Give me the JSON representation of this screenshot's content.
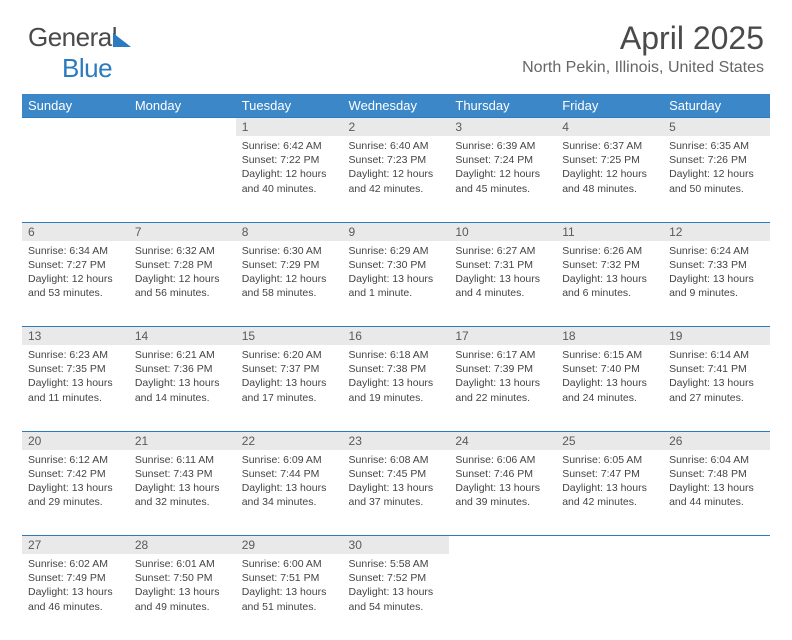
{
  "logo": {
    "word1": "General",
    "word2": "Blue"
  },
  "title": "April 2025",
  "location": "North Pekin, Illinois, United States",
  "colors": {
    "header_bg": "#3b87c8",
    "header_text": "#ffffff",
    "daynum_bg": "#e9e9e9",
    "rule": "#2a7bbf",
    "text": "#444444",
    "logo_blue": "#2a7bbf"
  },
  "day_headers": [
    "Sunday",
    "Monday",
    "Tuesday",
    "Wednesday",
    "Thursday",
    "Friday",
    "Saturday"
  ],
  "weeks": [
    [
      null,
      null,
      {
        "n": "1",
        "sr": "Sunrise: 6:42 AM",
        "ss": "Sunset: 7:22 PM",
        "d1": "Daylight: 12 hours",
        "d2": "and 40 minutes."
      },
      {
        "n": "2",
        "sr": "Sunrise: 6:40 AM",
        "ss": "Sunset: 7:23 PM",
        "d1": "Daylight: 12 hours",
        "d2": "and 42 minutes."
      },
      {
        "n": "3",
        "sr": "Sunrise: 6:39 AM",
        "ss": "Sunset: 7:24 PM",
        "d1": "Daylight: 12 hours",
        "d2": "and 45 minutes."
      },
      {
        "n": "4",
        "sr": "Sunrise: 6:37 AM",
        "ss": "Sunset: 7:25 PM",
        "d1": "Daylight: 12 hours",
        "d2": "and 48 minutes."
      },
      {
        "n": "5",
        "sr": "Sunrise: 6:35 AM",
        "ss": "Sunset: 7:26 PM",
        "d1": "Daylight: 12 hours",
        "d2": "and 50 minutes."
      }
    ],
    [
      {
        "n": "6",
        "sr": "Sunrise: 6:34 AM",
        "ss": "Sunset: 7:27 PM",
        "d1": "Daylight: 12 hours",
        "d2": "and 53 minutes."
      },
      {
        "n": "7",
        "sr": "Sunrise: 6:32 AM",
        "ss": "Sunset: 7:28 PM",
        "d1": "Daylight: 12 hours",
        "d2": "and 56 minutes."
      },
      {
        "n": "8",
        "sr": "Sunrise: 6:30 AM",
        "ss": "Sunset: 7:29 PM",
        "d1": "Daylight: 12 hours",
        "d2": "and 58 minutes."
      },
      {
        "n": "9",
        "sr": "Sunrise: 6:29 AM",
        "ss": "Sunset: 7:30 PM",
        "d1": "Daylight: 13 hours",
        "d2": "and 1 minute."
      },
      {
        "n": "10",
        "sr": "Sunrise: 6:27 AM",
        "ss": "Sunset: 7:31 PM",
        "d1": "Daylight: 13 hours",
        "d2": "and 4 minutes."
      },
      {
        "n": "11",
        "sr": "Sunrise: 6:26 AM",
        "ss": "Sunset: 7:32 PM",
        "d1": "Daylight: 13 hours",
        "d2": "and 6 minutes."
      },
      {
        "n": "12",
        "sr": "Sunrise: 6:24 AM",
        "ss": "Sunset: 7:33 PM",
        "d1": "Daylight: 13 hours",
        "d2": "and 9 minutes."
      }
    ],
    [
      {
        "n": "13",
        "sr": "Sunrise: 6:23 AM",
        "ss": "Sunset: 7:35 PM",
        "d1": "Daylight: 13 hours",
        "d2": "and 11 minutes."
      },
      {
        "n": "14",
        "sr": "Sunrise: 6:21 AM",
        "ss": "Sunset: 7:36 PM",
        "d1": "Daylight: 13 hours",
        "d2": "and 14 minutes."
      },
      {
        "n": "15",
        "sr": "Sunrise: 6:20 AM",
        "ss": "Sunset: 7:37 PM",
        "d1": "Daylight: 13 hours",
        "d2": "and 17 minutes."
      },
      {
        "n": "16",
        "sr": "Sunrise: 6:18 AM",
        "ss": "Sunset: 7:38 PM",
        "d1": "Daylight: 13 hours",
        "d2": "and 19 minutes."
      },
      {
        "n": "17",
        "sr": "Sunrise: 6:17 AM",
        "ss": "Sunset: 7:39 PM",
        "d1": "Daylight: 13 hours",
        "d2": "and 22 minutes."
      },
      {
        "n": "18",
        "sr": "Sunrise: 6:15 AM",
        "ss": "Sunset: 7:40 PM",
        "d1": "Daylight: 13 hours",
        "d2": "and 24 minutes."
      },
      {
        "n": "19",
        "sr": "Sunrise: 6:14 AM",
        "ss": "Sunset: 7:41 PM",
        "d1": "Daylight: 13 hours",
        "d2": "and 27 minutes."
      }
    ],
    [
      {
        "n": "20",
        "sr": "Sunrise: 6:12 AM",
        "ss": "Sunset: 7:42 PM",
        "d1": "Daylight: 13 hours",
        "d2": "and 29 minutes."
      },
      {
        "n": "21",
        "sr": "Sunrise: 6:11 AM",
        "ss": "Sunset: 7:43 PM",
        "d1": "Daylight: 13 hours",
        "d2": "and 32 minutes."
      },
      {
        "n": "22",
        "sr": "Sunrise: 6:09 AM",
        "ss": "Sunset: 7:44 PM",
        "d1": "Daylight: 13 hours",
        "d2": "and 34 minutes."
      },
      {
        "n": "23",
        "sr": "Sunrise: 6:08 AM",
        "ss": "Sunset: 7:45 PM",
        "d1": "Daylight: 13 hours",
        "d2": "and 37 minutes."
      },
      {
        "n": "24",
        "sr": "Sunrise: 6:06 AM",
        "ss": "Sunset: 7:46 PM",
        "d1": "Daylight: 13 hours",
        "d2": "and 39 minutes."
      },
      {
        "n": "25",
        "sr": "Sunrise: 6:05 AM",
        "ss": "Sunset: 7:47 PM",
        "d1": "Daylight: 13 hours",
        "d2": "and 42 minutes."
      },
      {
        "n": "26",
        "sr": "Sunrise: 6:04 AM",
        "ss": "Sunset: 7:48 PM",
        "d1": "Daylight: 13 hours",
        "d2": "and 44 minutes."
      }
    ],
    [
      {
        "n": "27",
        "sr": "Sunrise: 6:02 AM",
        "ss": "Sunset: 7:49 PM",
        "d1": "Daylight: 13 hours",
        "d2": "and 46 minutes."
      },
      {
        "n": "28",
        "sr": "Sunrise: 6:01 AM",
        "ss": "Sunset: 7:50 PM",
        "d1": "Daylight: 13 hours",
        "d2": "and 49 minutes."
      },
      {
        "n": "29",
        "sr": "Sunrise: 6:00 AM",
        "ss": "Sunset: 7:51 PM",
        "d1": "Daylight: 13 hours",
        "d2": "and 51 minutes."
      },
      {
        "n": "30",
        "sr": "Sunrise: 5:58 AM",
        "ss": "Sunset: 7:52 PM",
        "d1": "Daylight: 13 hours",
        "d2": "and 54 minutes."
      },
      null,
      null,
      null
    ]
  ]
}
